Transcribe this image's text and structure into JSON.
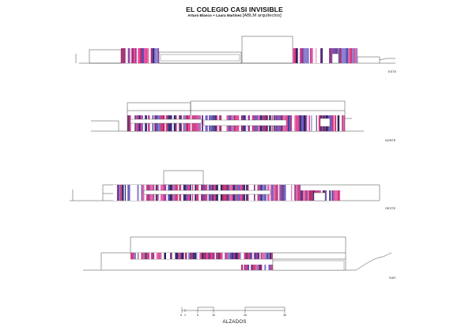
{
  "header": {
    "title": "EL COLEGIO CASI INVISIBLE",
    "authors": "Arturo Blanco + Laura Martínez",
    "studio": "[ABLM arquitectos]"
  },
  "elevations": [
    {
      "label": "ESTE"
    },
    {
      "label": "NORTE"
    },
    {
      "label": "OESTE"
    },
    {
      "label": "SUR"
    }
  ],
  "scale_bar": {
    "ticks": [
      "0",
      "1",
      "5",
      "10",
      "20",
      "30"
    ],
    "title": "ALZADOS"
  },
  "colors": {
    "line": "#444444",
    "cladding": [
      "#7a2f78",
      "#b02a6a",
      "#e8469b",
      "#3b2c7a",
      "#5a4fb0",
      "#8a7fd0",
      "#c04a8a",
      "#2e2460",
      "#9b3d9b",
      "#e06aa8",
      "#6f5fc0",
      "#d23a7d"
    ]
  }
}
